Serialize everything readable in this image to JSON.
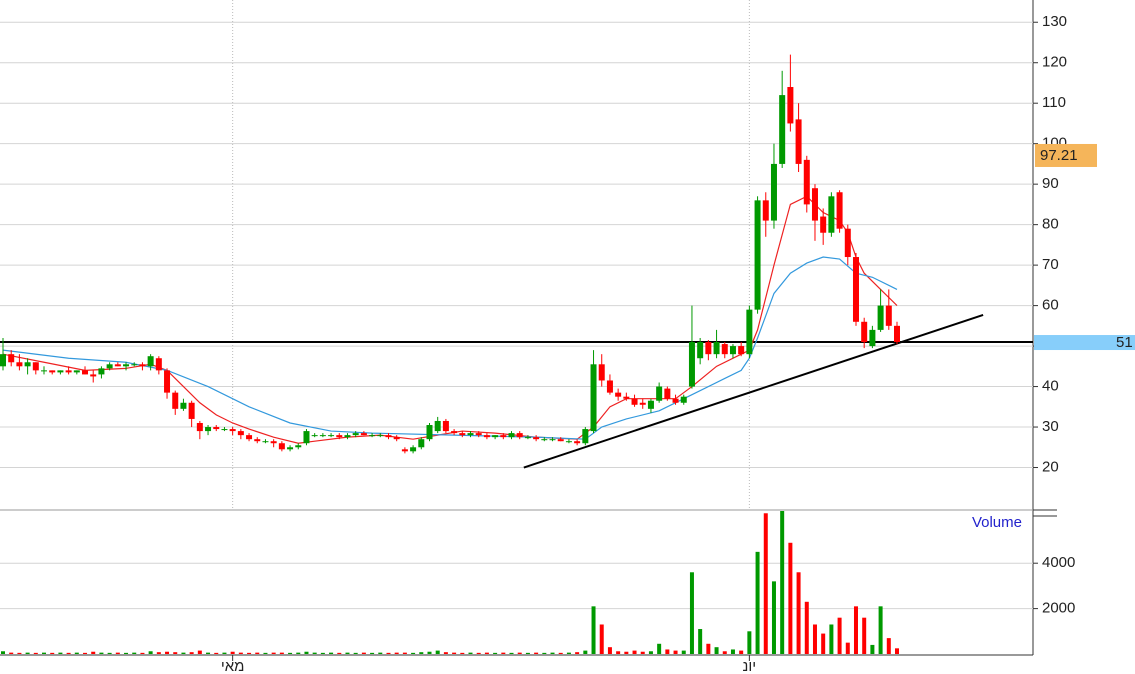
{
  "chart_data": {
    "type": "candlestick",
    "categories": [
      null,
      null,
      null,
      null,
      null,
      null,
      null,
      null,
      null,
      null,
      null,
      null,
      null,
      null,
      null,
      null,
      null,
      null,
      null,
      null,
      null,
      null,
      null,
      null,
      null,
      null,
      null,
      null,
      "מאי",
      null,
      null,
      null,
      null,
      null,
      null,
      null,
      null,
      null,
      null,
      null,
      null,
      null,
      null,
      null,
      null,
      null,
      null,
      null,
      null,
      null,
      null,
      null,
      null,
      null,
      null,
      null,
      null,
      null,
      null,
      null,
      null,
      null,
      null,
      null,
      null,
      null,
      null,
      null,
      null,
      null,
      null,
      null,
      null,
      null,
      null,
      null,
      null,
      null,
      null,
      null,
      null,
      null,
      null,
      null,
      null,
      null,
      null,
      null,
      null,
      null,
      null,
      "יונ",
      null,
      null,
      null,
      null,
      null,
      null,
      null,
      null,
      null,
      null,
      null,
      null,
      null,
      null,
      null,
      null,
      null,
      null
    ],
    "open": [
      45,
      48,
      46,
      45,
      46,
      44,
      44,
      43.5,
      44,
      43.5,
      44,
      43,
      43,
      44.5,
      45.5,
      45,
      45.5,
      45.5,
      45,
      47,
      44,
      38.5,
      34.5,
      36,
      31,
      29,
      30,
      29.5,
      29.5,
      29,
      28,
      27,
      26.5,
      26.5,
      26,
      24.5,
      25,
      26,
      28,
      28,
      28,
      28,
      27.5,
      28,
      28.5,
      28,
      28,
      28,
      27.5,
      24.5,
      24,
      25,
      27,
      29,
      31.5,
      29,
      28.5,
      28,
      28.5,
      28,
      27.5,
      28,
      27.5,
      28.5,
      27.5,
      27.5,
      27,
      27,
      27,
      26.5,
      26.5,
      26,
      29,
      45.5,
      41.5,
      38.5,
      37.5,
      37,
      36,
      34.5,
      36.5,
      39.5,
      37,
      36,
      40,
      47,
      51,
      48,
      50.5,
      48,
      50,
      48,
      59,
      86,
      81,
      95,
      114,
      106,
      96,
      89,
      82,
      78,
      88,
      79,
      72,
      56,
      50,
      54,
      60,
      55
    ],
    "high": [
      52,
      49,
      48,
      47,
      46,
      45,
      44,
      44,
      45,
      44,
      45,
      44,
      45,
      46,
      46,
      46,
      46,
      46,
      48,
      47.5,
      44.5,
      39,
      37,
      36.5,
      31.5,
      30.5,
      30.5,
      30,
      30,
      29.5,
      28.5,
      27.5,
      27,
      27,
      26.5,
      25.5,
      26,
      29.5,
      28.5,
      28.5,
      28.5,
      28.5,
      28.5,
      29,
      29,
      28.5,
      28.5,
      28.5,
      28,
      25,
      25.5,
      27.5,
      31,
      32.5,
      32,
      29.5,
      29,
      29,
      29,
      28.5,
      28,
      28.5,
      29,
      29,
      28,
      28,
      27.5,
      27.5,
      27.5,
      27,
      27,
      30,
      49,
      48,
      43,
      39.5,
      38.5,
      38,
      37,
      37,
      41,
      40,
      38,
      38,
      60,
      52,
      51.5,
      54,
      51,
      50.5,
      51,
      60,
      87,
      88,
      100,
      118,
      122,
      110,
      97,
      90,
      84,
      88,
      88.5,
      80,
      73,
      57,
      55,
      64,
      64,
      56
    ],
    "low": [
      44,
      45,
      44,
      43,
      43,
      43,
      43,
      43,
      43,
      43,
      43,
      41,
      42,
      44,
      45,
      44,
      45,
      44,
      44,
      43,
      37,
      33,
      34,
      30,
      27,
      28,
      29,
      29,
      28,
      27,
      26.5,
      26,
      26,
      25,
      24,
      24,
      24.5,
      25.5,
      27.5,
      27.5,
      27.5,
      27,
      27,
      27.5,
      28,
      27.5,
      27.5,
      27,
      26.5,
      23.5,
      23.5,
      24.5,
      26.5,
      28.5,
      28.5,
      28,
      27.5,
      27.5,
      27.5,
      27,
      27,
      27,
      27,
      27,
      27,
      26.5,
      26.5,
      26.5,
      26.5,
      26,
      25.5,
      25.5,
      28.5,
      40,
      38,
      36.5,
      36.5,
      35,
      34.5,
      33.5,
      36,
      36.5,
      35.5,
      35.5,
      39.5,
      45.5,
      46.5,
      47,
      47,
      47,
      47.5,
      47,
      58,
      77,
      79,
      94,
      103,
      93,
      83,
      76,
      75,
      77,
      78,
      70,
      55,
      49.5,
      49.5,
      53.5,
      54,
      50.5
    ],
    "close": [
      48,
      46,
      45,
      46,
      44,
      44,
      43.5,
      44,
      43.5,
      44,
      43,
      42.5,
      44.5,
      45.5,
      45,
      45.5,
      45.5,
      45,
      47.5,
      44,
      38.5,
      34.5,
      36,
      32,
      29,
      30,
      29.5,
      29.5,
      29,
      28,
      27,
      26.5,
      26.5,
      26,
      24.5,
      25,
      25.5,
      29,
      28,
      28,
      28,
      27.5,
      28,
      28.5,
      28,
      28,
      28,
      27.5,
      27,
      24,
      25,
      27,
      30.5,
      31.5,
      29,
      28.5,
      28,
      28.5,
      28,
      27.5,
      28,
      27.5,
      28.5,
      27.5,
      27.5,
      27,
      27,
      27,
      26.5,
      26.5,
      26,
      29.5,
      45.5,
      41.5,
      38.5,
      37.5,
      37,
      35.5,
      35.5,
      36.5,
      40,
      37,
      36,
      37.5,
      51,
      51,
      48,
      51,
      48,
      50,
      48,
      59,
      86,
      81,
      95,
      112,
      105,
      95,
      85,
      81,
      78,
      87,
      79,
      72,
      56,
      51,
      54,
      60,
      55,
      51
    ],
    "up_color": "#009900",
    "down_color": "#ff0000",
    "ylim": [
      10,
      135
    ],
    "yticks": [
      20,
      30,
      40,
      50,
      60,
      70,
      80,
      90,
      100,
      110,
      120,
      130
    ],
    "grid": true,
    "moving_averages": [
      {
        "color": "#ee2222",
        "x": [
          0,
          5,
          10,
          15,
          18,
          20,
          22,
          24,
          26,
          28,
          30,
          33,
          36,
          38,
          42,
          46,
          50,
          53,
          56,
          60,
          65,
          70,
          72,
          74,
          76,
          79,
          82,
          84,
          87,
          90,
          91,
          92,
          94,
          96,
          98,
          100,
          102,
          103,
          104,
          105,
          107,
          109
        ],
        "values": [
          48,
          46,
          44,
          44.5,
          45.5,
          44,
          40,
          36,
          33,
          31,
          29.5,
          27.5,
          26,
          26.5,
          27.5,
          28,
          27,
          28,
          29,
          28.5,
          27.5,
          27,
          30,
          35,
          37,
          37,
          37,
          40,
          45,
          48,
          49,
          54,
          70,
          85,
          87,
          83,
          81,
          78,
          72,
          68,
          64,
          60
        ]
      },
      {
        "color": "#3399dd",
        "x": [
          0,
          8,
          15,
          20,
          25,
          30,
          35,
          40,
          45,
          55,
          65,
          71,
          73,
          76,
          80,
          84,
          88,
          90,
          91,
          92,
          94,
          96,
          98,
          100,
          102,
          104,
          106,
          109
        ],
        "values": [
          49,
          47,
          46,
          44,
          40,
          35,
          31,
          29,
          28.5,
          28,
          27.5,
          27,
          30,
          32,
          34,
          38,
          42,
          44,
          47,
          52,
          63,
          68,
          70.5,
          72,
          71.5,
          68,
          67,
          64
        ]
      }
    ],
    "trendline": {
      "x": [
        63.5,
        119.5
      ],
      "values": [
        20,
        57.7
      ]
    },
    "level": 51,
    "last_price": 97.21,
    "volume": {
      "title": "Volume",
      "values": [
        120,
        60,
        50,
        60,
        50,
        60,
        50,
        60,
        50,
        60,
        50,
        100,
        60,
        50,
        60,
        50,
        60,
        50,
        120,
        80,
        100,
        80,
        60,
        80,
        150,
        60,
        50,
        60,
        100,
        60,
        50,
        60,
        50,
        60,
        60,
        50,
        60,
        100,
        60,
        50,
        60,
        50,
        60,
        50,
        60,
        50,
        60,
        50,
        60,
        60,
        50,
        80,
        100,
        150,
        80,
        60,
        50,
        60,
        50,
        60,
        50,
        60,
        50,
        60,
        50,
        60,
        50,
        60,
        50,
        60,
        80,
        150,
        2100,
        1300,
        300,
        120,
        100,
        150,
        100,
        120,
        450,
        200,
        150,
        150,
        3600,
        1100,
        450,
        300,
        120,
        200,
        150,
        1000,
        4500,
        6200,
        3200,
        6300,
        4900,
        3600,
        2300,
        1300,
        900,
        1300,
        1600,
        500,
        2100,
        1600,
        400,
        2100,
        700,
        250
      ],
      "ylim": [
        0,
        6300
      ],
      "yticks": [
        2000,
        4000
      ]
    }
  }
}
